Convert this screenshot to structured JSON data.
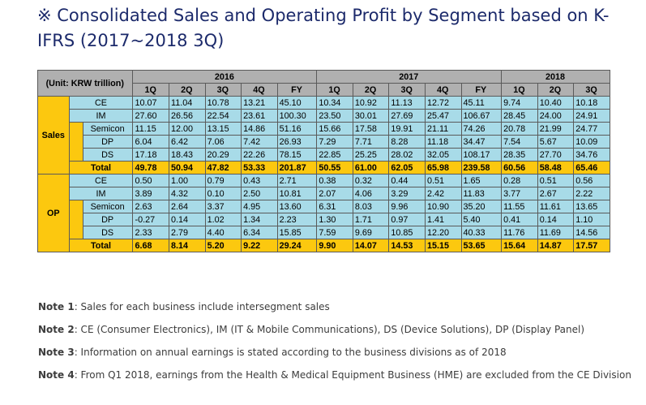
{
  "title": "※ Consolidated Sales and Operating Profit by Segment based on K-IFRS (2017~2018 3Q)",
  "table": {
    "unit_label": "(Unit: KRW trillion)",
    "years": [
      "2016",
      "2017",
      "2018"
    ],
    "quarters_2016": [
      "1Q",
      "2Q",
      "3Q",
      "4Q",
      "FY"
    ],
    "quarters_2017": [
      "1Q",
      "2Q",
      "3Q",
      "4Q",
      "FY"
    ],
    "quarters_2018": [
      "1Q",
      "2Q",
      "3Q"
    ],
    "groups": [
      {
        "name": "Sales",
        "rows": [
          {
            "label": "CE",
            "values": [
              "10.07",
              "11.04",
              "10.78",
              "13.21",
              "45.10",
              "10.34",
              "10.92",
              "11.13",
              "12.72",
              "45.11",
              "9.74",
              "10.40",
              "10.18"
            ]
          },
          {
            "label": "IM",
            "values": [
              "27.60",
              "26.56",
              "22.54",
              "23.61",
              "100.30",
              "23.50",
              "30.01",
              "27.69",
              "25.47",
              "106.67",
              "28.45",
              "24.00",
              "24.91"
            ]
          },
          {
            "label": "Semicon",
            "values": [
              "11.15",
              "12.00",
              "13.15",
              "14.86",
              "51.16",
              "15.66",
              "17.58",
              "19.91",
              "21.11",
              "74.26",
              "20.78",
              "21.99",
              "24.77"
            ]
          },
          {
            "label": "DP",
            "values": [
              "6.04",
              "6.42",
              "7.06",
              "7.42",
              "26.93",
              "7.29",
              "7.71",
              "8.28",
              "11.18",
              "34.47",
              "7.54",
              "5.67",
              "10.09"
            ]
          },
          {
            "label": "DS",
            "values": [
              "17.18",
              "18.43",
              "20.29",
              "22.26",
              "78.15",
              "22.85",
              "25.25",
              "28.02",
              "32.05",
              "108.17",
              "28.35",
              "27.70",
              "34.76"
            ]
          }
        ],
        "total": {
          "label": "Total",
          "values": [
            "49.78",
            "50.94",
            "47.82",
            "53.33",
            "201.87",
            "50.55",
            "61.00",
            "62.05",
            "65.98",
            "239.58",
            "60.56",
            "58.48",
            "65.46"
          ]
        }
      },
      {
        "name": "OP",
        "rows": [
          {
            "label": "CE",
            "values": [
              "0.50",
              "1.00",
              "0.79",
              "0.43",
              "2.71",
              "0.38",
              "0.32",
              "0.44",
              "0.51",
              "1.65",
              "0.28",
              "0.51",
              "0.56"
            ]
          },
          {
            "label": "IM",
            "values": [
              "3.89",
              "4.32",
              "0.10",
              "2.50",
              "10.81",
              "2.07",
              "4.06",
              "3.29",
              "2.42",
              "11.83",
              "3.77",
              "2.67",
              "2.22"
            ]
          },
          {
            "label": "Semicon",
            "values": [
              "2.63",
              "2.64",
              "3.37",
              "4.95",
              "13.60",
              "6.31",
              "8.03",
              "9.96",
              "10.90",
              "35.20",
              "11.55",
              "11.61",
              "13.65"
            ]
          },
          {
            "label": "DP",
            "values": [
              "-0.27",
              "0.14",
              "1.02",
              "1.34",
              "2.23",
              "1.30",
              "1.71",
              "0.97",
              "1.41",
              "5.40",
              "0.41",
              "0.14",
              "1.10"
            ]
          },
          {
            "label": "DS",
            "values": [
              "2.33",
              "2.79",
              "4.40",
              "6.34",
              "15.85",
              "7.59",
              "9.69",
              "10.85",
              "12.20",
              "40.33",
              "11.76",
              "11.69",
              "14.56"
            ]
          }
        ],
        "total": {
          "label": "Total",
          "values": [
            "6.68",
            "8.14",
            "5.20",
            "9.22",
            "29.24",
            "9.90",
            "14.07",
            "14.53",
            "15.15",
            "53.65",
            "15.64",
            "14.87",
            "17.57"
          ]
        }
      }
    ]
  },
  "notes": [
    {
      "label": "Note 1",
      "text": ": Sales for each business include intersegment sales"
    },
    {
      "label": "Note 2",
      "text": ": CE (Consumer Electronics), IM (IT & Mobile Communications), DS (Device Solutions), DP (Display Panel)"
    },
    {
      "label": "Note 3",
      "text": ": Information on annual earnings is stated according to the business divisions as of 2018"
    },
    {
      "label": "Note 4",
      "text": ": From Q1 2018, earnings from the Health & Medical Equipment Business (HME) are excluded from the CE Division"
    }
  ],
  "colors": {
    "title": "#1c2a6b",
    "header_gray": "#b0b0b0",
    "accent_yellow": "#fcc80f",
    "cell_blue": "#a8dbe8",
    "note_text": "#3c3c3c"
  }
}
